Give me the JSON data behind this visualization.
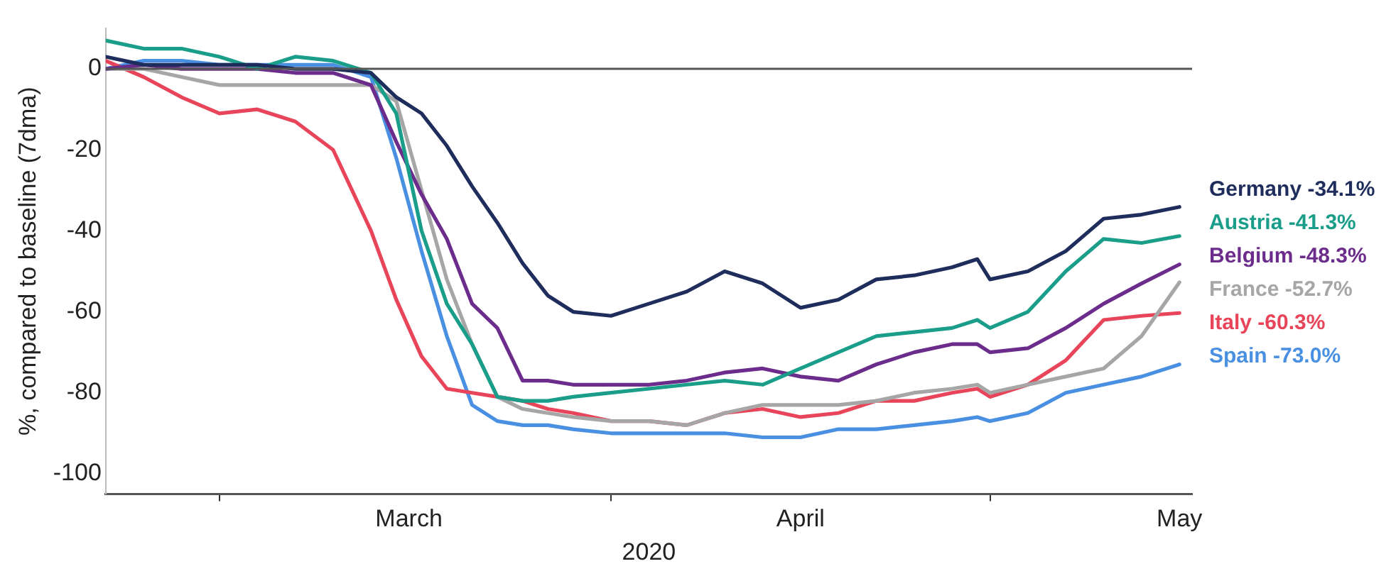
{
  "chart_data": {
    "type": "line",
    "xlabel": "2020",
    "ylabel": "%, compared to baseline (7dma)",
    "x": [
      "2020-02-21",
      "2020-02-24",
      "2020-02-27",
      "2020-03-01",
      "2020-03-04",
      "2020-03-07",
      "2020-03-10",
      "2020-03-13",
      "2020-03-15",
      "2020-03-17",
      "2020-03-19",
      "2020-03-21",
      "2020-03-23",
      "2020-03-25",
      "2020-03-27",
      "2020-03-29",
      "2020-04-01",
      "2020-04-04",
      "2020-04-07",
      "2020-04-10",
      "2020-04-13",
      "2020-04-16",
      "2020-04-19",
      "2020-04-22",
      "2020-04-25",
      "2020-04-28",
      "2020-04-30",
      "2020-05-01",
      "2020-05-04",
      "2020-05-07",
      "2020-05-10",
      "2020-05-13",
      "2020-05-16"
    ],
    "series": [
      {
        "name": "Germany -34.1%",
        "color": "#1f2d5c",
        "values": [
          3,
          1,
          1,
          1,
          1,
          0,
          0,
          -1,
          -7,
          -11,
          -19,
          -29,
          -38,
          -48,
          -56,
          -60,
          -61,
          -58,
          -55,
          -50,
          -53,
          -59,
          -57,
          -52,
          -51,
          -49,
          -47,
          -52,
          -50,
          -45,
          -37,
          -36,
          -34.1
        ]
      },
      {
        "name": "Austria -41.3%",
        "color": "#1a9e8a",
        "values": [
          7,
          5,
          5,
          3,
          0,
          3,
          2,
          -1,
          -11,
          -40,
          -58,
          -68,
          -81,
          -82,
          -82,
          -81,
          -80,
          -79,
          -78,
          -77,
          -78,
          -74,
          -70,
          -66,
          -65,
          -64,
          -62,
          -64,
          -60,
          -50,
          -42,
          -43,
          -41.3
        ]
      },
      {
        "name": "Belgium -48.3%",
        "color": "#6b2c8c",
        "values": [
          0,
          1,
          0,
          0,
          0,
          -1,
          -1,
          -4,
          -18,
          -31,
          -42,
          -58,
          -64,
          -77,
          -77,
          -78,
          -78,
          -78,
          -77,
          -75,
          -74,
          -76,
          -77,
          -73,
          -70,
          -68,
          -68,
          -70,
          -69,
          -64,
          -58,
          -53,
          -48.3
        ]
      },
      {
        "name": "France -52.7%",
        "color": "#a6a6a6",
        "values": [
          0,
          0,
          -2,
          -4,
          -4,
          -4,
          -4,
          -4,
          -8,
          -30,
          -52,
          -68,
          -81,
          -84,
          -85,
          -86,
          -87,
          -87,
          -88,
          -85,
          -83,
          -83,
          -83,
          -82,
          -80,
          -79,
          -78,
          -80,
          -78,
          -76,
          -74,
          -66,
          -52.7
        ]
      },
      {
        "name": "Italy -60.3%",
        "color": "#e8455a",
        "values": [
          2,
          -2,
          -7,
          -11,
          -10,
          -13,
          -20,
          -40,
          -57,
          -71,
          -79,
          -80,
          -81,
          -82,
          -84,
          -85,
          -87,
          -87,
          -88,
          -85,
          -84,
          -86,
          -85,
          -82,
          -82,
          -80,
          -79,
          -81,
          -78,
          -72,
          -62,
          -61,
          -60.3
        ]
      },
      {
        "name": "Spain -73.0%",
        "color": "#4a90e2",
        "values": [
          0,
          2,
          2,
          1,
          1,
          1,
          1,
          -2,
          -22,
          -45,
          -66,
          -83,
          -87,
          -88,
          -88,
          -89,
          -90,
          -90,
          -90,
          -90,
          -91,
          -91,
          -89,
          -89,
          -88,
          -87,
          -86,
          -87,
          -85,
          -80,
          -78,
          -76,
          -73
        ]
      }
    ],
    "xlim": [
      "2020-02-21",
      "2020-05-17"
    ],
    "xticks": [
      {
        "value": "2020-03-01",
        "label": null
      },
      {
        "value": "2020-03-16",
        "label": "March"
      },
      {
        "value": "2020-04-01",
        "label": null
      },
      {
        "value": "2020-04-16",
        "label": "April"
      },
      {
        "value": "2020-05-01",
        "label": null
      },
      {
        "value": "2020-05-16",
        "label": "May"
      }
    ],
    "ylim": [
      -105,
      10
    ],
    "yticks": [
      0,
      -20,
      -40,
      -60,
      -80,
      -100
    ],
    "ref_lines": [
      {
        "axis": "y",
        "value": 0,
        "color": "#555555"
      }
    ],
    "grid": false,
    "legend": false,
    "marker": "none",
    "line_style": "solid"
  }
}
